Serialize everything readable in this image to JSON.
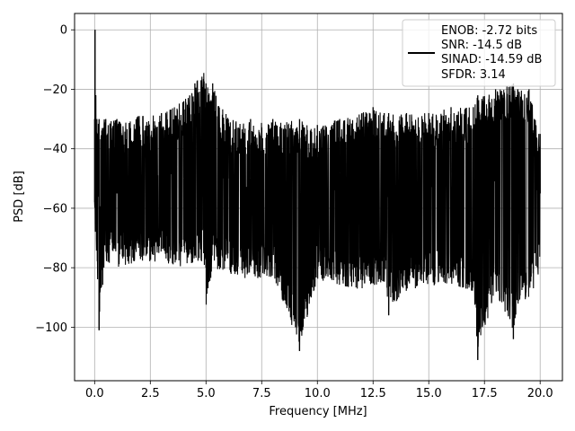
{
  "chart_data": {
    "type": "line",
    "title": "",
    "xlabel": "Frequency [MHz]",
    "ylabel": "PSD [dB]",
    "xlim": [
      -0.9,
      21.0
    ],
    "ylim": [
      -118,
      5.5
    ],
    "xticks": [
      0.0,
      2.5,
      5.0,
      7.5,
      10.0,
      12.5,
      15.0,
      17.5,
      20.0
    ],
    "xtick_labels": [
      "0.0",
      "2.5",
      "5.0",
      "7.5",
      "10.0",
      "12.5",
      "15.0",
      "17.5",
      "20.0"
    ],
    "yticks": [
      0,
      -20,
      -40,
      -60,
      -80,
      -100
    ],
    "ytick_labels": [
      "0",
      "−20",
      "−40",
      "−60",
      "−80",
      "−100"
    ],
    "grid": true,
    "legend_position": "top-right",
    "series": [
      {
        "name": "",
        "color": "#000000",
        "x": [
          0.0,
          0.02,
          0.05,
          0.1,
          0.2,
          0.5,
          1.0,
          2.0,
          3.0,
          4.0,
          4.5,
          4.9,
          5.0,
          5.3,
          6.0,
          7.0,
          8.0,
          9.2,
          10.0,
          11.0,
          12.0,
          12.5,
          13.0,
          13.2,
          14.0,
          15.0,
          16.0,
          17.0,
          17.2,
          18.0,
          18.8,
          19.0,
          19.5,
          20.0
        ],
        "y": [
          -58,
          0,
          -22,
          -55,
          -101,
          -60,
          -55,
          -52,
          -55,
          -50,
          -48,
          -14.5,
          -45,
          -42,
          -50,
          -50,
          -50,
          -108,
          -50,
          -48,
          -50,
          -47,
          -50,
          -96,
          -50,
          -50,
          -48,
          -50,
          -111,
          -48,
          -104,
          -50,
          -50,
          -55
        ],
        "envelope_upper": [
          -30,
          -30,
          -30,
          -30,
          -30,
          -30,
          -30,
          -29,
          -28,
          -24,
          -18,
          -14.5,
          -18,
          -18,
          -30,
          -30,
          -30,
          -30,
          -32,
          -30,
          -28,
          -26,
          -28,
          -28,
          -28,
          -28,
          -26,
          -26,
          -22,
          -20,
          -18,
          -20,
          -20,
          -35
        ],
        "envelope_lower": [
          -70,
          -70,
          -75,
          -80,
          -101,
          -80,
          -82,
          -80,
          -80,
          -82,
          -80,
          -80,
          -95,
          -82,
          -84,
          -86,
          -85,
          -108,
          -86,
          -88,
          -90,
          -88,
          -87,
          -96,
          -90,
          -88,
          -88,
          -90,
          -111,
          -90,
          -104,
          -95,
          -92,
          -85
        ]
      }
    ],
    "legend": {
      "lines": [
        "ENOB: -2.72 bits",
        "SNR: -14.5 dB",
        "SINAD: -14.59 dB",
        "SFDR: 3.14"
      ]
    }
  }
}
